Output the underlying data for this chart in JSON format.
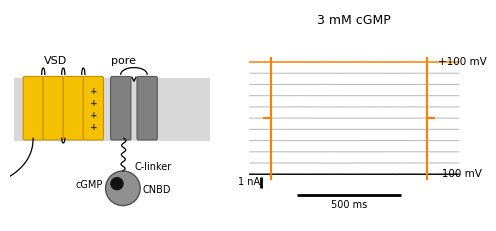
{
  "title": "3 mM cGMP",
  "label_plus100": "+100 mV",
  "label_minus100": "-100 mV",
  "scalebar_current": "1 nA",
  "scalebar_time": "500 ms",
  "vsd_label": "VSD",
  "pore_label": "pore",
  "cgmp_label": "cGMP",
  "clinker_label": "C-linker",
  "cnbd_label": "CNBD",
  "membrane_color": "#d8d8d8",
  "vsd_color": "#f5c000",
  "vsd_edge_color": "#c89000",
  "pore_color": "#808080",
  "pore_edge_color": "#585858",
  "cnbd_color": "#909090",
  "orange_color": "#FF7F00",
  "black_color": "#111111",
  "gray_trace_color": "#bbbbbb",
  "bg_color": "#ffffff",
  "title_fontsize": 9,
  "label_fontsize": 7.5,
  "annotation_fontsize": 7,
  "voltages": [
    100,
    80,
    60,
    40,
    20,
    0,
    -20,
    -40,
    -60,
    -80,
    -100
  ]
}
